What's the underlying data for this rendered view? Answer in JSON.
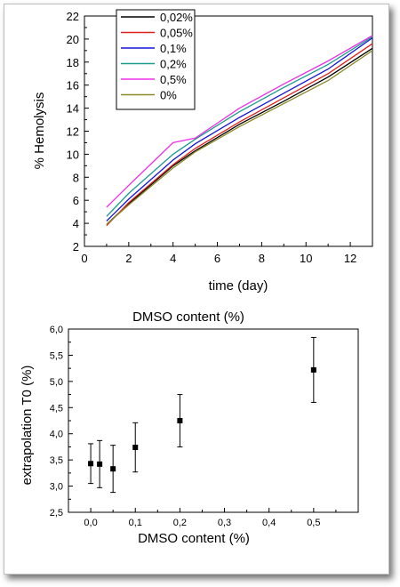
{
  "chart_data": [
    {
      "type": "line",
      "title": "",
      "xlabel": "time (day)",
      "ylabel": "% Hemolysis",
      "xlim": [
        0,
        13
      ],
      "ylim": [
        2,
        22
      ],
      "xticks": [
        "0",
        "2",
        "4",
        "6",
        "8",
        "10",
        "12"
      ],
      "yticks": [
        "2",
        "4",
        "6",
        "8",
        "10",
        "12",
        "14",
        "16",
        "18",
        "20",
        "22"
      ],
      "grid": false,
      "legend_placement": "top-left",
      "series": [
        {
          "name": "0,02%",
          "color": "#000000",
          "x": [
            1,
            2,
            4,
            5,
            7,
            9,
            11,
            13
          ],
          "y": [
            3.9,
            5.7,
            9.0,
            10.3,
            12.6,
            14.6,
            16.7,
            19.2
          ]
        },
        {
          "name": "0,05%",
          "color": "#e0201b",
          "x": [
            1,
            2,
            4,
            5,
            7,
            9,
            11,
            13
          ],
          "y": [
            3.8,
            5.8,
            9.1,
            10.5,
            12.8,
            14.9,
            17.0,
            19.6
          ]
        },
        {
          "name": "0,1%",
          "color": "#1515d6",
          "x": [
            1,
            2,
            4,
            5,
            7,
            9,
            11,
            13
          ],
          "y": [
            4.2,
            6.1,
            9.5,
            10.9,
            13.2,
            15.3,
            17.4,
            20.1
          ]
        },
        {
          "name": "0,2%",
          "color": "#1a9b8e",
          "x": [
            1,
            2,
            4,
            5,
            7,
            9,
            11,
            13
          ],
          "y": [
            4.6,
            6.6,
            10.0,
            11.3,
            13.7,
            15.8,
            17.8,
            20.2
          ]
        },
        {
          "name": "0,5%",
          "color": "#ee2ee8",
          "x": [
            1,
            2,
            4,
            5,
            7,
            9,
            11,
            13
          ],
          "y": [
            5.4,
            7.3,
            11.0,
            11.4,
            14.0,
            16.1,
            18.1,
            20.3
          ]
        },
        {
          "name": "0%",
          "color": "#8a8a28",
          "x": [
            1,
            2,
            4,
            5,
            7,
            9,
            11,
            13
          ],
          "y": [
            3.9,
            5.6,
            8.8,
            10.2,
            12.4,
            14.4,
            16.4,
            19.0
          ]
        }
      ]
    },
    {
      "type": "scatter",
      "title": "DMSO content (%)",
      "xlabel": "DMSO content (%)",
      "ylabel": "extrapolation T0 (%)",
      "xlim": [
        -0.05,
        0.6
      ],
      "ylim": [
        2.5,
        6.0
      ],
      "xticks": [
        "0,0",
        "0,1",
        "0,2",
        "0,3",
        "0,4",
        "0,5"
      ],
      "yticks": [
        "2,5",
        "3,0",
        "3,5",
        "4,0",
        "4,5",
        "5,0",
        "5,5",
        "6,0"
      ],
      "grid": false,
      "error_bars": true,
      "points": [
        {
          "x": 0.0,
          "y": 3.43,
          "err": 0.38
        },
        {
          "x": 0.02,
          "y": 3.42,
          "err": 0.45
        },
        {
          "x": 0.05,
          "y": 3.33,
          "err": 0.45
        },
        {
          "x": 0.1,
          "y": 3.74,
          "err": 0.47
        },
        {
          "x": 0.2,
          "y": 4.25,
          "err": 0.5
        },
        {
          "x": 0.5,
          "y": 5.22,
          "err": 0.62
        }
      ]
    }
  ]
}
